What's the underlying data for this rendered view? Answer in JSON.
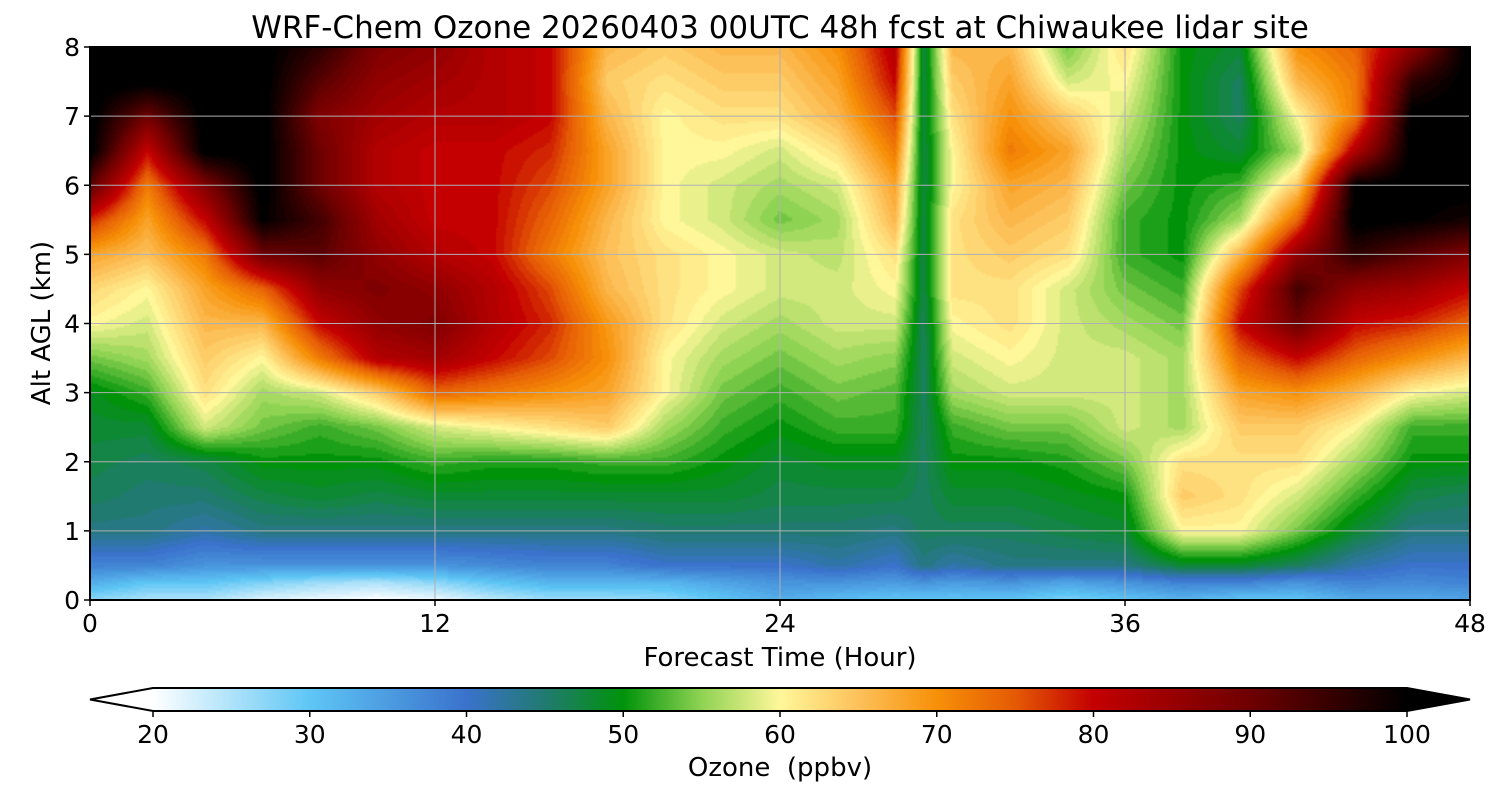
{
  "chart_data": {
    "type": "heatmap",
    "title": "WRF-Chem Ozone  20260403 00UTC 48h fcst at Chiwaukee lidar site",
    "xlabel": "Forecast Time (Hour)",
    "ylabel": "Alt AGL (km)",
    "xlim": [
      0,
      48
    ],
    "ylim": [
      0,
      8
    ],
    "xticks": [
      0,
      12,
      24,
      36,
      48
    ],
    "yticks": [
      0,
      1,
      2,
      3,
      4,
      5,
      6,
      7,
      8
    ],
    "grid": true,
    "colorbar": {
      "label": "Ozone  (ppbv)",
      "range": [
        20,
        100
      ],
      "ticks": [
        20,
        30,
        40,
        50,
        60,
        70,
        80,
        90,
        100
      ],
      "extend": "both",
      "stops": [
        {
          "v": 20,
          "c": "#ffffff"
        },
        {
          "v": 30,
          "c": "#5ec6f5"
        },
        {
          "v": 40,
          "c": "#3a72cc"
        },
        {
          "v": 45,
          "c": "#217a70"
        },
        {
          "v": 50,
          "c": "#00930a"
        },
        {
          "v": 55,
          "c": "#8fd353"
        },
        {
          "v": 60,
          "c": "#fff79a"
        },
        {
          "v": 65,
          "c": "#fdc15a"
        },
        {
          "v": 70,
          "c": "#f79008"
        },
        {
          "v": 75,
          "c": "#e55a05"
        },
        {
          "v": 80,
          "c": "#c40000"
        },
        {
          "v": 90,
          "c": "#6e0000"
        },
        {
          "v": 100,
          "c": "#000000"
        }
      ]
    },
    "profiles_altitudes_km": [
      0,
      0.25,
      0.5,
      1,
      1.5,
      2,
      2.5,
      3,
      3.5,
      4,
      4.5,
      5,
      5.5,
      6,
      6.5,
      7,
      7.5,
      8
    ],
    "profiles": [
      {
        "t": 0,
        "values": [
          27,
          33,
          38,
          44,
          46,
          47,
          48,
          49,
          54,
          60,
          63,
          68,
          78,
          92,
          101,
          101,
          101,
          101
        ]
      },
      {
        "t": 2,
        "values": [
          25,
          30,
          38,
          44,
          45,
          46,
          48,
          52,
          56,
          58,
          60,
          65,
          68,
          72,
          80,
          90,
          101,
          101
        ]
      },
      {
        "t": 4,
        "values": [
          25,
          30,
          36,
          42,
          45,
          47,
          58,
          62,
          64,
          66,
          68,
          72,
          80,
          88,
          101,
          101,
          101,
          101
        ]
      },
      {
        "t": 6,
        "values": [
          22,
          28,
          36,
          44,
          47,
          50,
          54,
          56,
          60,
          66,
          74,
          90,
          100,
          101,
          101,
          101,
          101,
          101
        ]
      },
      {
        "t": 8,
        "values": [
          21,
          26,
          36,
          44,
          48,
          50,
          52,
          58,
          72,
          80,
          86,
          92,
          94,
          90,
          90,
          88,
          92,
          96
        ]
      },
      {
        "t": 10,
        "values": [
          20,
          25,
          36,
          44,
          47,
          50,
          54,
          64,
          82,
          86,
          88,
          86,
          84,
          82,
          82,
          84,
          86,
          88
        ]
      },
      {
        "t": 12,
        "values": [
          21,
          27,
          36,
          44,
          48,
          52,
          58,
          74,
          84,
          88,
          86,
          82,
          80,
          80,
          80,
          82,
          84,
          86
        ]
      },
      {
        "t": 14,
        "values": [
          24,
          30,
          37,
          44,
          48,
          51,
          60,
          72,
          80,
          82,
          82,
          80,
          80,
          80,
          80,
          82,
          82,
          82
        ]
      },
      {
        "t": 16,
        "values": [
          26,
          32,
          38,
          44,
          48,
          51,
          62,
          70,
          76,
          78,
          76,
          72,
          74,
          76,
          78,
          80,
          80,
          80
        ]
      },
      {
        "t": 18,
        "values": [
          26,
          32,
          38,
          44,
          48,
          52,
          64,
          68,
          70,
          69,
          66,
          65,
          66,
          68,
          68,
          66,
          64,
          66
        ]
      },
      {
        "t": 20,
        "values": [
          27,
          32,
          40,
          45,
          48,
          52,
          56,
          60,
          60,
          62,
          62,
          62,
          60,
          60,
          60,
          60,
          62,
          64
        ]
      },
      {
        "t": 22,
        "values": [
          30,
          34,
          40,
          45,
          48,
          50,
          52,
          54,
          56,
          58,
          60,
          60,
          58,
          58,
          60,
          62,
          64,
          66
        ]
      },
      {
        "t": 24,
        "values": [
          33,
          36,
          40,
          45,
          47,
          48,
          50,
          52,
          54,
          56,
          58,
          58,
          54,
          56,
          58,
          62,
          64,
          66
        ]
      },
      {
        "t": 26,
        "values": [
          31,
          36,
          42,
          45,
          47,
          49,
          52,
          54,
          56,
          58,
          58,
          57,
          56,
          58,
          62,
          66,
          68,
          70
        ]
      },
      {
        "t": 28,
        "values": [
          30,
          35,
          40,
          44,
          47,
          49,
          52,
          53,
          55,
          58,
          60,
          62,
          66,
          68,
          72,
          76,
          80,
          82
        ]
      },
      {
        "t": 29,
        "values": [
          30,
          36,
          44,
          46,
          46,
          46,
          46,
          46,
          46,
          46,
          47,
          47,
          47,
          47,
          47,
          47,
          47,
          47
        ]
      },
      {
        "t": 30,
        "values": [
          30,
          35,
          42,
          46,
          48,
          50,
          52,
          56,
          58,
          60,
          62,
          62,
          62,
          60,
          60,
          62,
          64,
          66
        ]
      },
      {
        "t": 32,
        "values": [
          30,
          36,
          44,
          46,
          48,
          50,
          54,
          58,
          60,
          62,
          62,
          64,
          66,
          68,
          72,
          70,
          68,
          66
        ]
      },
      {
        "t": 34,
        "values": [
          28,
          34,
          44,
          47,
          49,
          51,
          54,
          58,
          58,
          58,
          58,
          62,
          64,
          66,
          68,
          64,
          58,
          54
        ]
      },
      {
        "t": 36,
        "values": [
          30,
          36,
          44,
          48,
          50,
          54,
          58,
          58,
          58,
          56,
          54,
          52,
          52,
          54,
          56,
          58,
          60,
          62
        ]
      },
      {
        "t": 38,
        "values": [
          32,
          38,
          48,
          60,
          64,
          62,
          56,
          56,
          56,
          54,
          52,
          50,
          50,
          50,
          50,
          50,
          50,
          50
        ]
      },
      {
        "t": 40,
        "values": [
          30,
          38,
          48,
          60,
          62,
          62,
          64,
          68,
          74,
          80,
          76,
          66,
          56,
          52,
          48,
          46,
          46,
          48
        ]
      },
      {
        "t": 42,
        "values": [
          30,
          36,
          46,
          54,
          58,
          62,
          64,
          70,
          80,
          90,
          94,
          86,
          74,
          64,
          56,
          60,
          66,
          70
        ]
      },
      {
        "t": 44,
        "values": [
          33,
          38,
          42,
          48,
          52,
          56,
          60,
          66,
          74,
          80,
          86,
          96,
          101,
          100,
          82,
          72,
          72,
          74
        ]
      },
      {
        "t": 46,
        "values": [
          33,
          37,
          40,
          44,
          47,
          50,
          52,
          60,
          70,
          78,
          84,
          92,
          100,
          101,
          101,
          101,
          96,
          86
        ]
      },
      {
        "t": 48,
        "values": [
          34,
          38,
          40,
          44,
          46,
          50,
          52,
          58,
          66,
          74,
          80,
          88,
          98,
          101,
          101,
          101,
          101,
          101
        ]
      }
    ]
  }
}
